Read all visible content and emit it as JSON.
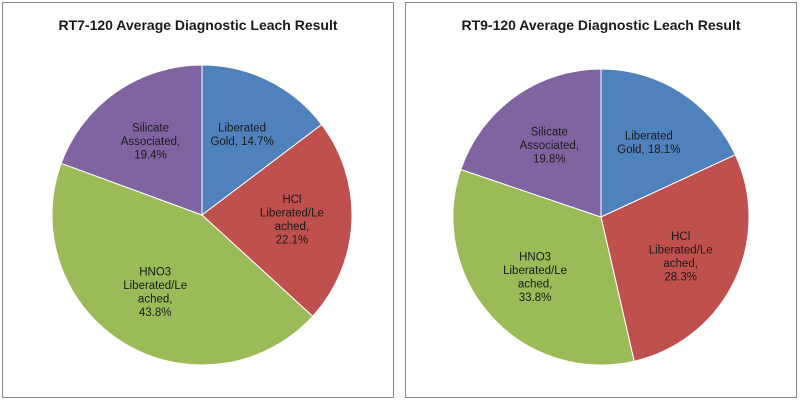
{
  "chart_data": [
    {
      "type": "pie",
      "title": "RT7-120 Average Diagnostic Leach Result",
      "slices": [
        {
          "label": [
            "Liberated",
            "Gold, 14.7%"
          ],
          "value": 14.7,
          "color": "#4f81bd"
        },
        {
          "label": [
            "HCl",
            "Liberated/Le",
            "ached,",
            "22.1%"
          ],
          "value": 22.1,
          "color": "#c0504d"
        },
        {
          "label": [
            "HNO3",
            "Liberated/Le",
            "ached,",
            "43.8%"
          ],
          "value": 43.8,
          "color": "#9bbb59"
        },
        {
          "label": [
            "Silicate",
            "Associated,",
            "19.4%"
          ],
          "value": 19.4,
          "color": "#8064a2"
        }
      ]
    },
    {
      "type": "pie",
      "title": "RT9-120 Average Diagnostic Leach Result",
      "slices": [
        {
          "label": [
            "Liberated",
            "Gold, 18.1%"
          ],
          "value": 18.1,
          "color": "#4f81bd"
        },
        {
          "label": [
            "HCl",
            "Liberated/Le",
            "ached,",
            "28.3%"
          ],
          "value": 28.3,
          "color": "#c0504d"
        },
        {
          "label": [
            "HNO3",
            "Liberated/Le",
            "ached,",
            "33.8%"
          ],
          "value": 33.8,
          "color": "#9bbb59"
        },
        {
          "label": [
            "Silicate",
            "Associated,",
            "19.8%"
          ],
          "value": 19.8,
          "color": "#8064a2"
        }
      ]
    }
  ]
}
